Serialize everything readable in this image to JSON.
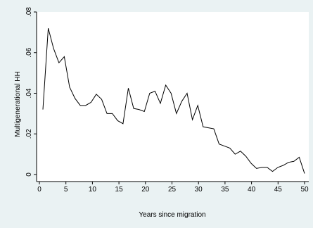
{
  "chart_data": {
    "type": "line",
    "title": "",
    "xlabel": "Years since migration",
    "ylabel": "Multigenerational HH",
    "xlim": [
      0,
      50
    ],
    "ylim": [
      0,
      0.08
    ],
    "x_ticks": [
      0,
      5,
      10,
      15,
      20,
      25,
      30,
      35,
      40,
      45,
      50
    ],
    "y_ticks": [
      0,
      0.02,
      0.04,
      0.06,
      0.08
    ],
    "x_tick_labels": [
      "0",
      "5",
      "10",
      "15",
      "20",
      "25",
      "30",
      "35",
      "40",
      "45",
      "50"
    ],
    "y_tick_labels": [
      "0",
      ".02",
      ".04",
      ".06",
      ".08"
    ],
    "grid": false,
    "legend": "none",
    "colors": {
      "line": "#000000",
      "plot_background": "#ffffff",
      "outer_background": "#eaf2f3"
    },
    "series": [
      {
        "x": [
          1,
          2,
          3,
          4,
          5,
          6,
          7,
          8,
          9,
          10,
          11,
          12,
          13,
          14,
          15,
          16,
          17,
          18,
          19,
          20,
          21,
          22,
          23,
          24,
          25,
          26,
          27,
          28,
          29,
          30,
          31,
          32,
          33,
          34,
          35,
          36,
          37,
          38,
          39,
          40,
          41,
          42,
          43,
          44,
          45,
          46,
          47,
          48,
          49,
          50
        ],
        "values": [
          0.032,
          0.072,
          0.062,
          0.055,
          0.058,
          0.043,
          0.0375,
          0.034,
          0.034,
          0.0355,
          0.0395,
          0.037,
          0.03,
          0.03,
          0.0265,
          0.025,
          0.0425,
          0.0325,
          0.032,
          0.031,
          0.04,
          0.041,
          0.035,
          0.044,
          0.04,
          0.03,
          0.036,
          0.04,
          0.027,
          0.034,
          0.0235,
          0.023,
          0.0225,
          0.015,
          0.014,
          0.013,
          0.01,
          0.0115,
          0.009,
          0.0055,
          0.003,
          0.0035,
          0.0035,
          0.0015,
          0.0035,
          0.0045,
          0.006,
          0.0065,
          0.0085,
          0.0005
        ]
      }
    ]
  }
}
